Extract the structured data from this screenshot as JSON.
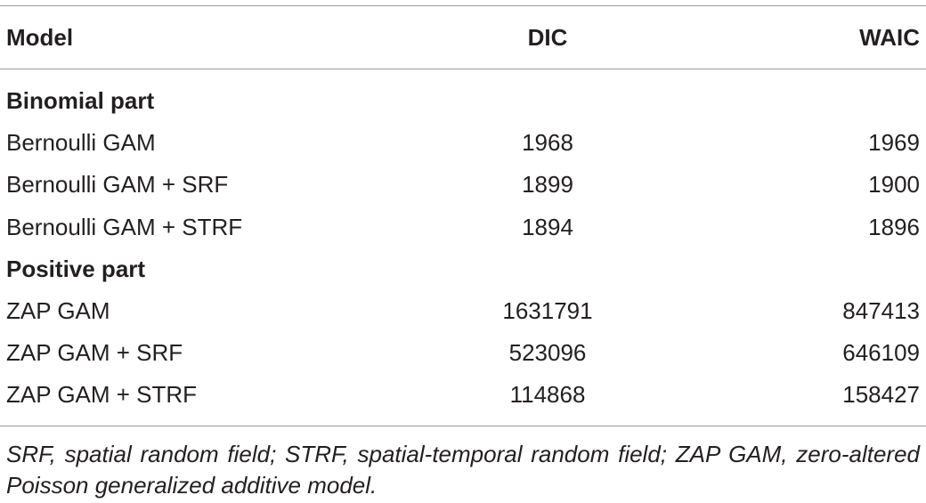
{
  "table": {
    "header": [
      "Model",
      "DIC",
      "WAIC"
    ],
    "sections": [
      {
        "title": "Binomial part",
        "rows": [
          [
            "Bernoulli GAM",
            1968,
            1969
          ],
          [
            "Bernoulli GAM + SRF",
            1899,
            1900
          ],
          [
            "Bernoulli GAM + STRF",
            1894,
            1896
          ]
        ]
      },
      {
        "title": "Positive part",
        "rows": [
          [
            "ZAP GAM",
            1631791,
            847413
          ],
          [
            "ZAP GAM + SRF",
            523096,
            646109
          ],
          [
            "ZAP GAM + STRF",
            114868,
            158427
          ]
        ]
      }
    ]
  },
  "footnote": "SRF, spatial random field; STRF, spatial-temporal random field; ZAP GAM, zero-altered Poisson generalized additive model."
}
